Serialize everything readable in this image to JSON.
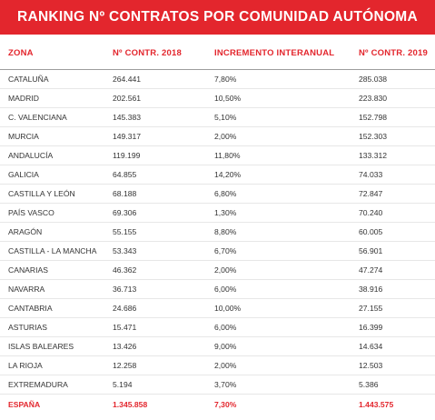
{
  "title": "RANKING Nº CONTRATOS POR COMUNIDAD AUTÓNOMA",
  "headers": {
    "zona": "ZONA",
    "contr_2018": "Nº CONTR. 2018",
    "incremento": "INCREMENTO INTERANUAL",
    "contr_2019": "Nº CONTR. 2019"
  },
  "rows": [
    {
      "zona": "CATALUÑA",
      "c2018": "264.441",
      "inc": "7,80%",
      "c2019": "285.038"
    },
    {
      "zona": "MADRID",
      "c2018": "202.561",
      "inc": "10,50%",
      "c2019": "223.830"
    },
    {
      "zona": "C. VALENCIANA",
      "c2018": "145.383",
      "inc": "5,10%",
      "c2019": "152.798"
    },
    {
      "zona": "MURCIA",
      "c2018": "149.317",
      "inc": "2,00%",
      "c2019": "152.303"
    },
    {
      "zona": "ANDALUCÍA",
      "c2018": "119.199",
      "inc": "11,80%",
      "c2019": "133.312"
    },
    {
      "zona": "GALICIA",
      "c2018": "64.855",
      "inc": "14,20%",
      "c2019": "74.033"
    },
    {
      "zona": "CASTILLA Y LEÓN",
      "c2018": "68.188",
      "inc": "6,80%",
      "c2019": "72.847"
    },
    {
      "zona": "PAÍS VASCO",
      "c2018": "69.306",
      "inc": "1,30%",
      "c2019": "70.240"
    },
    {
      "zona": "ARAGÓN",
      "c2018": "55.155",
      "inc": "8,80%",
      "c2019": "60.005"
    },
    {
      "zona": "CASTILLA - LA MANCHA",
      "c2018": "53.343",
      "inc": "6,70%",
      "c2019": "56.901"
    },
    {
      "zona": "CANARIAS",
      "c2018": "46.362",
      "inc": "2,00%",
      "c2019": "47.274"
    },
    {
      "zona": "NAVARRA",
      "c2018": "36.713",
      "inc": "6,00%",
      "c2019": "38.916"
    },
    {
      "zona": "CANTABRIA",
      "c2018": "24.686",
      "inc": "10,00%",
      "c2019": "27.155"
    },
    {
      "zona": "ASTURIAS",
      "c2018": "15.471",
      "inc": "6,00%",
      "c2019": "16.399"
    },
    {
      "zona": "ISLAS BALEARES",
      "c2018": "13.426",
      "inc": "9,00%",
      "c2019": "14.634"
    },
    {
      "zona": "LA RIOJA",
      "c2018": "12.258",
      "inc": "2,00%",
      "c2019": "12.503"
    },
    {
      "zona": "EXTREMADURA",
      "c2018": "5.194",
      "inc": "3,70%",
      "c2019": "5.386"
    }
  ],
  "total": {
    "zona": "ESPAÑA",
    "c2018": "1.345.858",
    "inc": "7,30%",
    "c2019": "1.443.575"
  },
  "colors": {
    "accent": "#e3262d",
    "text": "#333333"
  }
}
